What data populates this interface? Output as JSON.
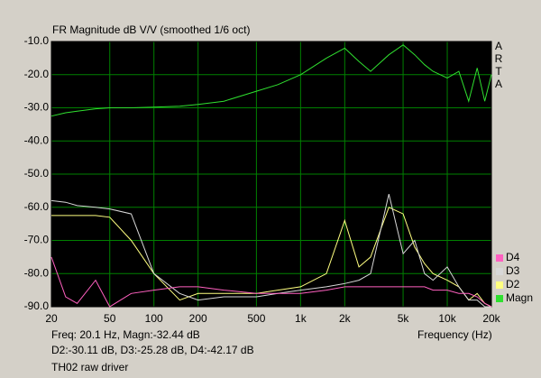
{
  "chart_data": {
    "type": "line",
    "title": "FR Magnitude dB V/V (smoothed 1/6 oct)",
    "brand": "ARTA",
    "x_label": "Frequency (Hz)",
    "cursor_info": [
      "Freq: 20.1 Hz, Magn:-32.44 dB",
      "D2:-30.11 dB, D3:-25.28 dB, D4:-42.17 dB"
    ],
    "note": "TH02 raw driver",
    "log_x": true,
    "grid": true,
    "legend": "bottom-right",
    "xlim": [
      20,
      20000
    ],
    "xticks": [
      20,
      50,
      100,
      200,
      500,
      {
        "value": 1000,
        "label": "1k"
      },
      {
        "value": 2000,
        "label": "2k"
      },
      {
        "value": 5000,
        "label": "5k"
      },
      {
        "value": 10000,
        "label": "10k"
      },
      {
        "value": 20000,
        "label": "20k"
      }
    ],
    "ylim": [
      -90,
      -10
    ],
    "yticks": [
      {
        "value": -10,
        "label": "-10.0"
      },
      {
        "value": -20,
        "label": "-20.0"
      },
      {
        "value": -30,
        "label": "-30.0"
      },
      {
        "value": -40,
        "label": "-40.0"
      },
      {
        "value": -50,
        "label": "-50.0"
      },
      {
        "value": -60,
        "label": "-60.0"
      },
      {
        "value": -70,
        "label": "-70.0"
      },
      {
        "value": -80,
        "label": "-80.0"
      },
      {
        "value": -90,
        "label": "-90.0"
      }
    ],
    "x": [
      20,
      25,
      30,
      40,
      50,
      70,
      100,
      150,
      200,
      300,
      500,
      700,
      1000,
      1500,
      2000,
      2500,
      3000,
      4000,
      5000,
      6000,
      7000,
      8000,
      10000,
      12000,
      14000,
      16000,
      18000,
      20000
    ],
    "series": [
      {
        "name": "Magn",
        "color": "#30e030",
        "values": [
          -32.5,
          -31.5,
          -31,
          -30.3,
          -30,
          -30,
          -29.8,
          -29.5,
          -29,
          -28,
          -25,
          -23,
          -20,
          -15,
          -12,
          -16,
          -19,
          -14,
          -11,
          -14,
          -17,
          -19,
          -21,
          -19,
          -28,
          -18,
          -28,
          -20
        ]
      },
      {
        "name": "D2",
        "color": "#ffff80",
        "values": [
          -62.5,
          -62.5,
          -62.5,
          -62.5,
          -63,
          -70,
          -80,
          -88,
          -86,
          -86,
          -86,
          -85,
          -84,
          -80,
          -64,
          -78,
          -75,
          -60,
          -62,
          -72,
          -77,
          -80,
          -82,
          -84,
          -88,
          -86,
          -89,
          -90
        ]
      },
      {
        "name": "D3",
        "color": "#d8d8d8",
        "values": [
          -58,
          -58.5,
          -59.5,
          -60,
          -60.5,
          -62,
          -80,
          -86,
          -88,
          -87,
          -87,
          -86,
          -85,
          -84,
          -83,
          -82,
          -80,
          -56,
          -74,
          -70,
          -80,
          -82,
          -78,
          -84,
          -88,
          -88,
          -90,
          -90
        ]
      },
      {
        "name": "D4",
        "color": "#ff60c0",
        "values": [
          -75,
          -87,
          -89,
          -82,
          -90,
          -86,
          -85,
          -84,
          -84,
          -85,
          -86,
          -86,
          -86,
          -85,
          -84,
          -84,
          -84,
          -84,
          -84,
          -84,
          -84,
          -85,
          -85,
          -86,
          -86,
          -87,
          -89,
          -90
        ]
      }
    ]
  }
}
